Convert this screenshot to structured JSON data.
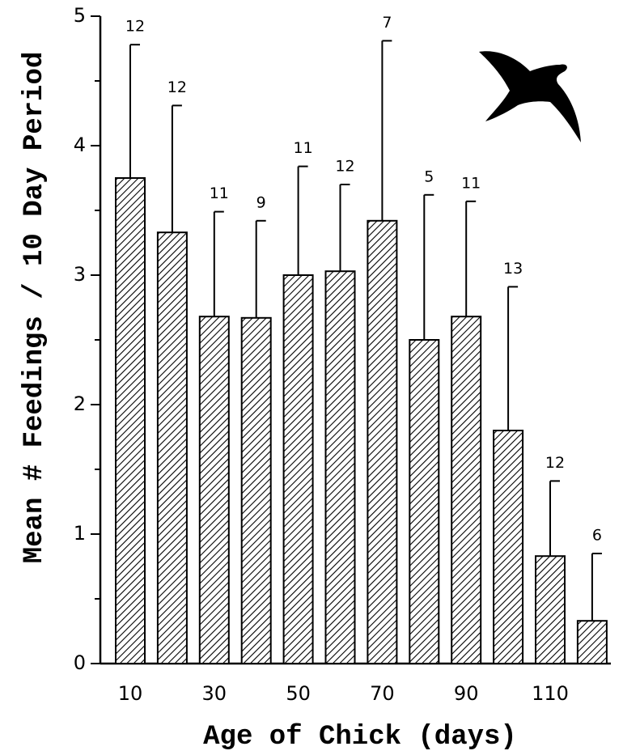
{
  "chart_data": {
    "type": "bar",
    "y_label": "Mean # Feedings / 10 Day Period",
    "x_label": "Age of Chick (days)",
    "categories": [
      "10",
      null,
      "30",
      null,
      "50",
      null,
      "70",
      null,
      "90",
      null,
      "110",
      null
    ],
    "values": [
      3.75,
      3.33,
      2.68,
      2.67,
      3.0,
      3.03,
      3.42,
      2.5,
      2.68,
      1.8,
      0.83,
      0.33
    ],
    "errors": [
      1.03,
      0.98,
      0.81,
      0.75,
      0.84,
      0.67,
      1.39,
      1.12,
      0.89,
      1.11,
      0.58,
      0.52
    ],
    "n": [
      12,
      12,
      11,
      9,
      11,
      12,
      7,
      5,
      11,
      13,
      12,
      6
    ],
    "color": "#000000",
    "ylim": [
      0,
      5
    ],
    "yticks": [
      0,
      1,
      2,
      3,
      4,
      5
    ],
    "yminorticks": [
      0.5,
      1.5,
      2.5,
      3.5,
      4.5
    ],
    "grid": false
  }
}
